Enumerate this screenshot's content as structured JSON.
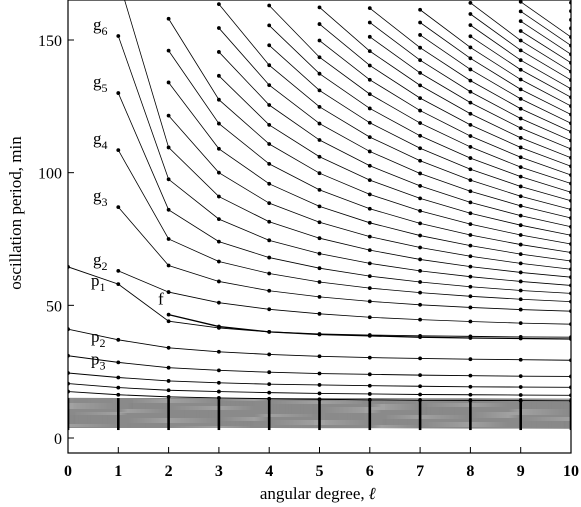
{
  "chart_data": {
    "type": "line",
    "title": "",
    "xlabel": "angular degree, ",
    "xlabel_symbol": "ℓ",
    "ylabel": "oscillation period, min",
    "xlim": [
      0,
      10
    ],
    "ylim": [
      0,
      165
    ],
    "xticks": [
      0,
      1,
      2,
      3,
      4,
      5,
      6,
      7,
      8,
      9,
      10
    ],
    "yticks": [
      0,
      50,
      100,
      150
    ],
    "grid": false,
    "legend": "none",
    "line_color": "#000000",
    "f_mode": {
      "label": "f",
      "x": [
        2,
        3,
        4,
        5,
        6,
        7,
        8,
        9,
        10
      ],
      "y": [
        46.5,
        42,
        40,
        39,
        38.5,
        38,
        37.7,
        37.5,
        37.3
      ]
    },
    "p_modes": [
      {
        "label": "p",
        "sub": "1",
        "x": [
          0,
          1,
          2,
          3,
          4,
          5,
          6,
          7,
          8,
          9,
          10
        ],
        "y": [
          64.5,
          58,
          44,
          41.5,
          40,
          39.2,
          38.8,
          38.5,
          38.3,
          38.1,
          38
        ]
      },
      {
        "label": "p",
        "sub": "2",
        "x": [
          0,
          1,
          2,
          3,
          4,
          5,
          6,
          7,
          8,
          9,
          10
        ],
        "y": [
          41,
          37,
          34,
          32.5,
          31.5,
          30.8,
          30.3,
          30,
          29.7,
          29.5,
          29.3
        ]
      },
      {
        "label": "p",
        "sub": "3",
        "x": [
          0,
          1,
          2,
          3,
          4,
          5,
          6,
          7,
          8,
          9,
          10
        ],
        "y": [
          31,
          28.5,
          26.5,
          25.5,
          24.8,
          24.3,
          24,
          23.7,
          23.5,
          23.3,
          23.2
        ]
      },
      {
        "label": "",
        "sub": "",
        "x": [
          0,
          1,
          2,
          3,
          4,
          5,
          6,
          7,
          8,
          9,
          10
        ],
        "y": [
          24.5,
          22.8,
          21.5,
          20.8,
          20.3,
          20,
          19.7,
          19.5,
          19.3,
          19.2,
          19.1
        ]
      },
      {
        "label": "",
        "sub": "",
        "x": [
          0,
          1,
          2,
          3,
          4,
          5,
          6,
          7,
          8,
          9,
          10
        ],
        "y": [
          20.5,
          19,
          18,
          17.5,
          17.1,
          16.8,
          16.6,
          16.4,
          16.3,
          16.2,
          16.1
        ]
      },
      {
        "label": "",
        "sub": "",
        "x": [
          0,
          1,
          2,
          3,
          4,
          5,
          6,
          7,
          8,
          9,
          10
        ],
        "y": [
          17.5,
          16.3,
          15.5,
          15.1,
          14.8,
          14.6,
          14.4,
          14.3,
          14.2,
          14.1,
          14
        ]
      }
    ],
    "g_modes": [
      {
        "label": "g",
        "sub": "2",
        "x": [
          1,
          2,
          3,
          4,
          5,
          6,
          7,
          8,
          9,
          10
        ],
        "y": [
          63,
          55,
          51,
          48.5,
          46.8,
          45.5,
          44.6,
          43.9,
          43.3,
          42.9
        ]
      },
      {
        "label": "g",
        "sub": "3",
        "x": [
          1,
          2,
          3,
          4,
          5,
          6,
          7,
          8,
          9,
          10
        ],
        "y": [
          87,
          65,
          59,
          55.5,
          53.2,
          51.5,
          50.2,
          49.2,
          48.4,
          47.8
        ]
      },
      {
        "label": "g",
        "sub": "4",
        "x": [
          1,
          2,
          3,
          4,
          5,
          6,
          7,
          8,
          9,
          10
        ],
        "y": [
          108.5,
          75,
          66.5,
          62,
          58.8,
          56.5,
          54.8,
          53.4,
          52.3,
          51.4
        ]
      },
      {
        "label": "g",
        "sub": "5",
        "x": [
          1,
          2,
          3,
          4,
          5,
          6,
          7,
          8,
          9,
          10
        ],
        "y": [
          130,
          86,
          74,
          68,
          64,
          61,
          58.8,
          57,
          55.6,
          54.5
        ]
      },
      {
        "label": "g",
        "sub": "6",
        "x": [
          1,
          2,
          3,
          4,
          5,
          6,
          7,
          8,
          9,
          10
        ],
        "y": [
          151.5,
          97.5,
          82.5,
          74.5,
          69.5,
          65.8,
          63,
          60.8,
          59,
          57.5
        ]
      },
      {
        "label": "",
        "sub": "",
        "x": [
          1,
          2,
          3,
          4,
          5,
          6,
          7,
          8,
          9,
          10
        ],
        "y": [
          173,
          109.5,
          91,
          81.5,
          75.3,
          70.8,
          67.3,
          64.6,
          62.4,
          60.6
        ]
      },
      {
        "label": "",
        "sub": "",
        "x": [
          2,
          3,
          4,
          5,
          6,
          7,
          8,
          9,
          10
        ],
        "y": [
          121.5,
          100,
          88.5,
          81.3,
          75.9,
          71.8,
          68.5,
          65.8,
          63.6
        ]
      },
      {
        "label": "",
        "sub": "",
        "x": [
          2,
          3,
          4,
          5,
          6,
          7,
          8,
          9,
          10
        ],
        "y": [
          134,
          109,
          95.8,
          87.3,
          81.1,
          76.3,
          72.5,
          69.3,
          66.7
        ]
      },
      {
        "label": "",
        "sub": "",
        "x": [
          2,
          3,
          4,
          5,
          6,
          7,
          8,
          9,
          10
        ],
        "y": [
          146,
          118.5,
          103.3,
          93.5,
          86.4,
          80.9,
          76.5,
          72.9,
          69.9
        ]
      },
      {
        "label": "",
        "sub": "",
        "x": [
          2,
          3,
          4,
          5,
          6,
          7,
          8,
          9,
          10
        ],
        "y": [
          158,
          127.5,
          110.8,
          99.8,
          91.8,
          85.6,
          80.6,
          76.5,
          73.1
        ]
      },
      {
        "label": "",
        "sub": "",
        "x": [
          3,
          4,
          5,
          6,
          7,
          8,
          9,
          10
        ],
        "y": [
          136.5,
          118,
          106,
          97.2,
          90.3,
          84.7,
          80.2,
          76.4
        ]
      },
      {
        "label": "",
        "sub": "",
        "x": [
          3,
          4,
          5,
          6,
          7,
          8,
          9,
          10
        ],
        "y": [
          145.5,
          125.5,
          112.3,
          102.6,
          95,
          88.8,
          83.8,
          79.6
        ]
      },
      {
        "label": "",
        "sub": "",
        "x": [
          3,
          4,
          5,
          6,
          7,
          8,
          9,
          10
        ],
        "y": [
          154.5,
          133,
          118.5,
          108,
          99.7,
          93,
          87.5,
          82.9
        ]
      },
      {
        "label": "",
        "sub": "",
        "x": [
          3,
          4,
          5,
          6,
          7,
          8,
          9,
          10
        ],
        "y": [
          163.5,
          140.5,
          124.8,
          113.4,
          104.5,
          97.2,
          91.1,
          86.1
        ]
      },
      {
        "label": "",
        "sub": "",
        "x": [
          4,
          5,
          6,
          7,
          8,
          9,
          10
        ],
        "y": [
          148,
          131,
          118.8,
          109.2,
          101.3,
          94.8,
          89.4
        ]
      },
      {
        "label": "",
        "sub": "",
        "x": [
          4,
          5,
          6,
          7,
          8,
          9,
          10
        ],
        "y": [
          155.5,
          137.3,
          124.2,
          113.9,
          105.5,
          98.5,
          92.6
        ]
      },
      {
        "label": "",
        "sub": "",
        "x": [
          4,
          5,
          6,
          7,
          8,
          9,
          10
        ],
        "y": [
          163,
          143.5,
          129.6,
          118.7,
          109.7,
          102.1,
          95.9
        ]
      },
      {
        "label": "",
        "sub": "",
        "x": [
          5,
          6,
          7,
          8,
          9,
          10
        ],
        "y": [
          149.8,
          135,
          123.4,
          113.8,
          105.8,
          99.1
        ]
      },
      {
        "label": "",
        "sub": "",
        "x": [
          5,
          6,
          7,
          8,
          9,
          10
        ],
        "y": [
          156,
          140.4,
          128.1,
          118,
          109.5,
          102.4
        ]
      },
      {
        "label": "",
        "sub": "",
        "x": [
          5,
          6,
          7,
          8,
          9,
          10
        ],
        "y": [
          162.3,
          145.8,
          132.9,
          122.2,
          113.1,
          105.6
        ]
      },
      {
        "label": "",
        "sub": "",
        "x": [
          6,
          7,
          8,
          9,
          10
        ],
        "y": [
          151.2,
          137.6,
          126.4,
          116.8,
          108.9
        ]
      },
      {
        "label": "",
        "sub": "",
        "x": [
          6,
          7,
          8,
          9,
          10
        ],
        "y": [
          156.6,
          142.4,
          130.5,
          120.4,
          112.1
        ]
      },
      {
        "label": "",
        "sub": "",
        "x": [
          6,
          7,
          8,
          9,
          10
        ],
        "y": [
          162,
          147.1,
          134.7,
          124.1,
          115.4
        ]
      },
      {
        "label": "",
        "sub": "",
        "x": [
          7,
          8,
          9,
          10
        ],
        "y": [
          151.9,
          138.9,
          127.8,
          118.6
        ]
      },
      {
        "label": "",
        "sub": "",
        "x": [
          7,
          8,
          9,
          10
        ],
        "y": [
          156.6,
          143.1,
          131.4,
          121.9
        ]
      },
      {
        "label": "",
        "sub": "",
        "x": [
          7,
          8,
          9,
          10
        ],
        "y": [
          161.4,
          147.2,
          135.1,
          125.1
        ]
      },
      {
        "label": "",
        "sub": "",
        "x": [
          8,
          9,
          10
        ],
        "y": [
          151.4,
          138.8,
          128.4
        ]
      },
      {
        "label": "",
        "sub": "",
        "x": [
          8,
          9,
          10
        ],
        "y": [
          155.6,
          142.4,
          131.6
        ]
      },
      {
        "label": "",
        "sub": "",
        "x": [
          8,
          9,
          10
        ],
        "y": [
          159.8,
          146.1,
          134.9
        ]
      },
      {
        "label": "",
        "sub": "",
        "x": [
          8,
          9,
          10
        ],
        "y": [
          164,
          149.8,
          138.1
        ]
      },
      {
        "label": "",
        "sub": "",
        "x": [
          9,
          10
        ],
        "y": [
          153.4,
          141.4
        ]
      },
      {
        "label": "",
        "sub": "",
        "x": [
          9,
          10
        ],
        "y": [
          157.1,
          144.6
        ]
      },
      {
        "label": "",
        "sub": "",
        "x": [
          9,
          10
        ],
        "y": [
          160.8,
          147.9
        ]
      },
      {
        "label": "",
        "sub": "",
        "x": [
          9,
          10
        ],
        "y": [
          164.4,
          151.1
        ]
      },
      {
        "label": "",
        "sub": "",
        "x": [
          10
        ],
        "y": [
          154.4
        ]
      },
      {
        "label": "",
        "sub": "",
        "x": [
          10
        ],
        "y": [
          157.6
        ]
      },
      {
        "label": "",
        "sub": "",
        "x": [
          10
        ],
        "y": [
          160.9
        ]
      },
      {
        "label": "",
        "sub": "",
        "x": [
          10
        ],
        "y": [
          164.1
        ]
      }
    ],
    "dense_high_order_p_band": {
      "x": [
        0,
        1,
        2,
        3,
        4,
        5,
        6,
        7,
        8,
        9,
        10
      ],
      "y_range": [
        4,
        15
      ],
      "line_count": 30
    }
  }
}
